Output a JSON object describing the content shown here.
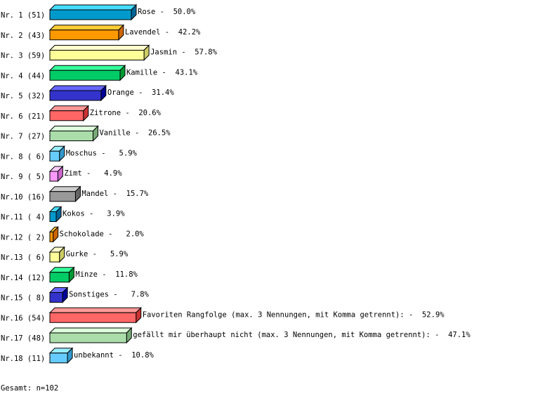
{
  "chart_data": {
    "type": "bar",
    "orientation": "horizontal",
    "style": "3d",
    "row_labels": [
      "Nr. 1 (51)",
      "Nr. 2 (43)",
      "Nr. 3 (59)",
      "Nr. 4 (44)",
      "Nr. 5 (32)",
      "Nr. 6 (21)",
      "Nr. 7 (27)",
      "Nr. 8 ( 6)",
      "Nr. 9 ( 5)",
      "Nr.10 (16)",
      "Nr.11 ( 4)",
      "Nr.12 ( 2)",
      "Nr.13 ( 6)",
      "Nr.14 (12)",
      "Nr.15 ( 8)",
      "Nr.16 (54)",
      "Nr.17 (48)",
      "Nr.18 (11)"
    ],
    "categories": [
      "Rose",
      "Lavendel",
      "Jasmin",
      "Kamille",
      "Orange",
      "Zitrone",
      "Vanille",
      "Moschus",
      "Zimt",
      "Mandel",
      "Kokos",
      "Schokolade",
      "Gurke",
      "Minze",
      "Sonstiges",
      "Favoriten Rangfolge (max. 3 Nennungen, mit Komma getrennt):",
      "gefällt mir überhaupt nicht (max. 3 Nennungen, mit Komma getrennt):",
      "unbekannt"
    ],
    "counts": [
      51,
      43,
      59,
      44,
      32,
      21,
      27,
      6,
      5,
      16,
      4,
      2,
      6,
      12,
      8,
      54,
      48,
      11
    ],
    "value_labels": [
      "50.0%",
      "42.2%",
      "57.8%",
      "43.1%",
      "31.4%",
      "20.6%",
      "26.5%",
      " 5.9%",
      " 4.9%",
      "15.7%",
      " 3.9%",
      " 2.0%",
      " 5.9%",
      "11.8%",
      " 7.8%",
      "52.9%",
      "47.1%",
      "10.8%"
    ],
    "values": [
      50.0,
      42.2,
      57.8,
      43.1,
      31.4,
      20.6,
      26.5,
      5.9,
      4.9,
      15.7,
      3.9,
      2.0,
      5.9,
      11.8,
      7.8,
      52.9,
      47.1,
      10.8
    ],
    "palette": [
      {
        "front": "#0099cc",
        "top": "#44ddff",
        "side": "#006699"
      },
      {
        "front": "#ff9900",
        "top": "#ffcc33",
        "side": "#cc6600"
      },
      {
        "front": "#ffff99",
        "top": "#ffffcc",
        "side": "#cccc66"
      },
      {
        "front": "#00cc66",
        "top": "#33ff99",
        "side": "#009933"
      },
      {
        "front": "#3333cc",
        "top": "#6666ff",
        "side": "#000099"
      },
      {
        "front": "#ff6666",
        "top": "#ff9999",
        "side": "#cc3333"
      },
      {
        "front": "#aaddaa",
        "top": "#ddffdd",
        "side": "#77aa77"
      },
      {
        "front": "#66ccff",
        "top": "#99eeff",
        "side": "#3399cc"
      },
      {
        "front": "#ff99ff",
        "top": "#ffccff",
        "side": "#cc66cc"
      },
      {
        "front": "#999999",
        "top": "#cccccc",
        "side": "#666666"
      }
    ],
    "xlim": [
      0,
      100
    ],
    "grid": false
  },
  "footer": "Gesamt: n=102"
}
